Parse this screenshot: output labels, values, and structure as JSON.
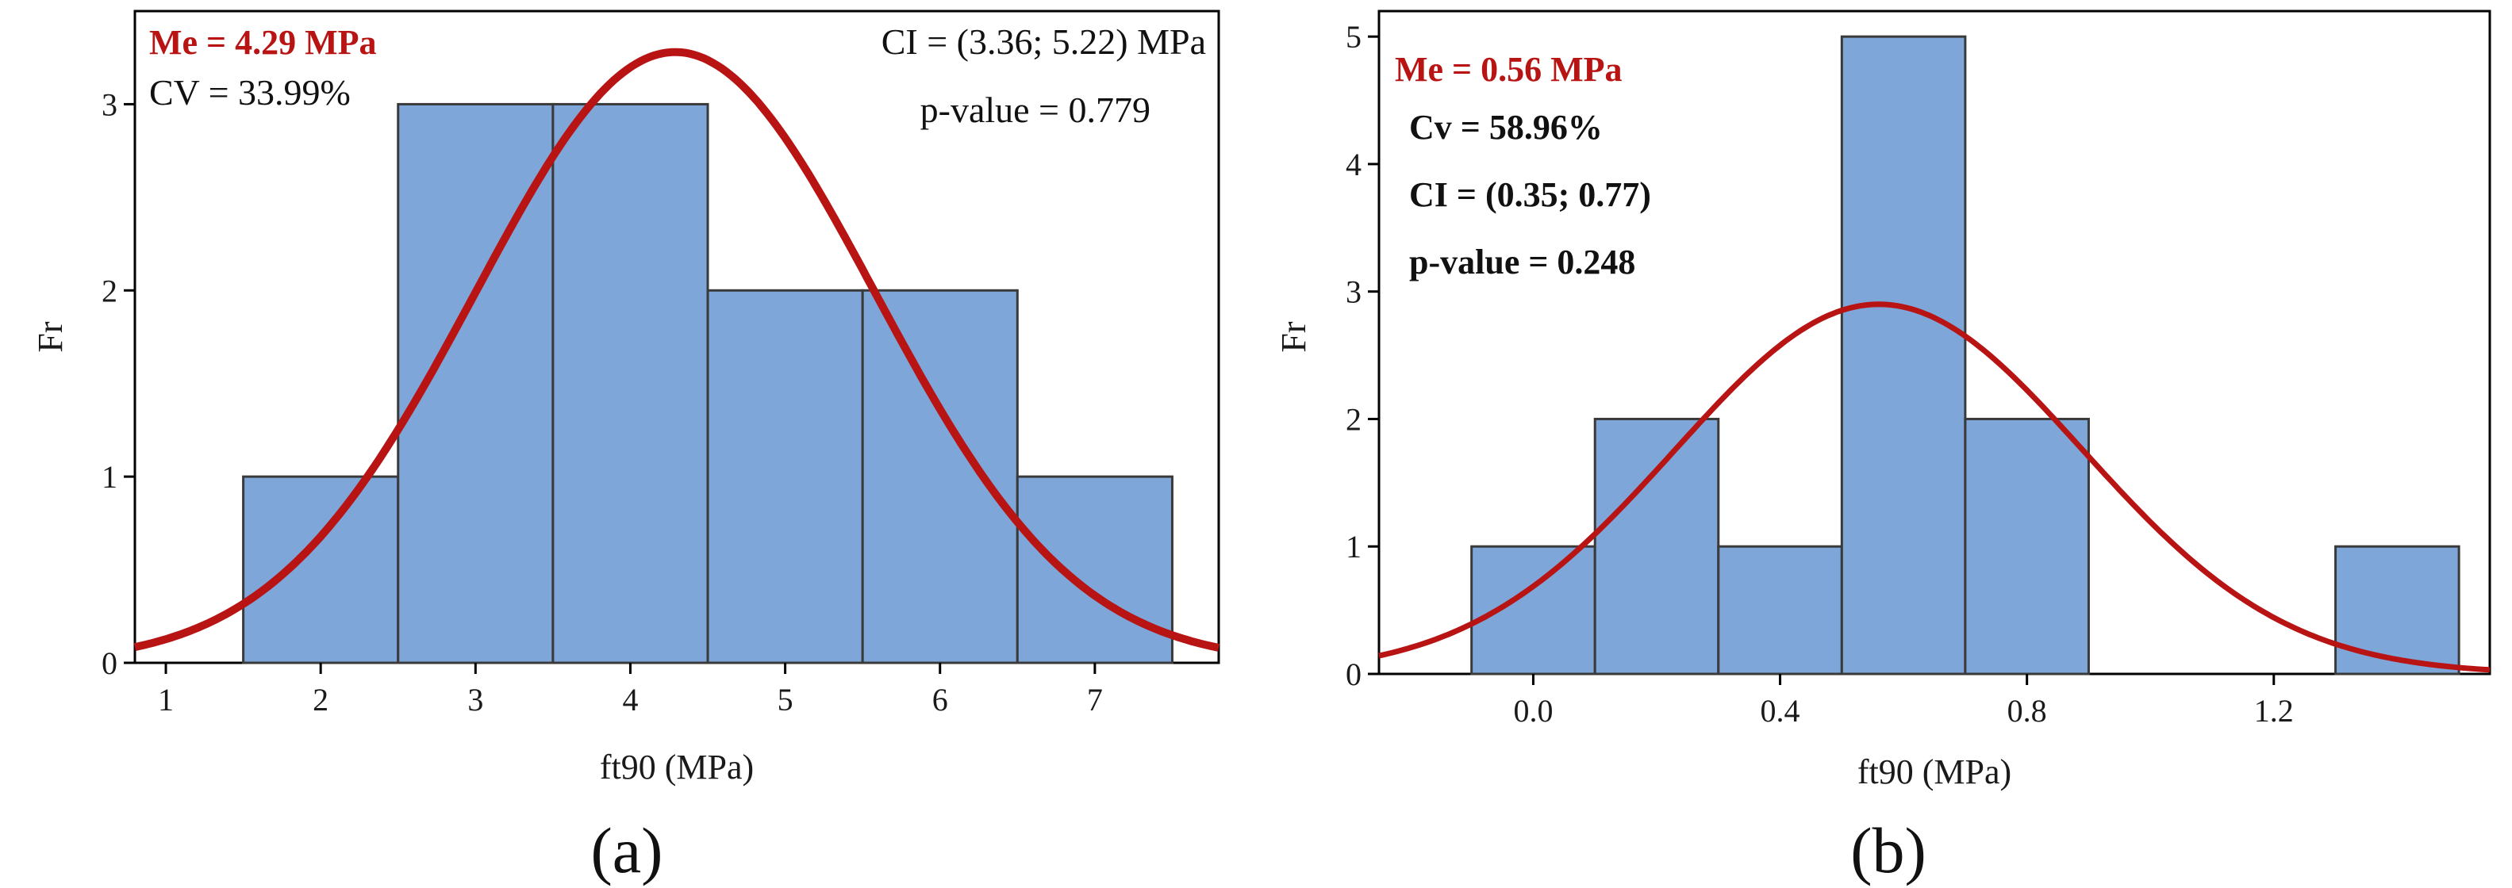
{
  "chart_data": [
    {
      "type": "bar",
      "panel_label": "(a)",
      "xlabel": "ft90 (MPa)",
      "ylabel": "Fr",
      "xlim": [
        0.8,
        7.8
      ],
      "ylim": [
        0,
        3.5
      ],
      "xticks": [
        1,
        2,
        3,
        4,
        5,
        6,
        7
      ],
      "yticks": [
        0,
        1,
        2,
        3
      ],
      "bins": [
        {
          "start": 1.5,
          "end": 2.5,
          "value": 1
        },
        {
          "start": 2.5,
          "end": 3.5,
          "value": 3
        },
        {
          "start": 3.5,
          "end": 4.5,
          "value": 3
        },
        {
          "start": 4.5,
          "end": 5.5,
          "value": 2
        },
        {
          "start": 5.5,
          "end": 6.5,
          "value": 2
        },
        {
          "start": 6.5,
          "end": 7.5,
          "value": 1
        }
      ],
      "fit_curve": {
        "type": "normal",
        "mean": 4.29,
        "peak": 3.28,
        "sigma": 1.29
      },
      "annotations": {
        "mean": "Me = 4.29 MPa",
        "cv": "CV = 33.99%",
        "ci": "CI = (3.36; 5.22) MPa",
        "p": "p-value = 0.779"
      },
      "grid": false,
      "colors": {
        "bar": "#7ea6d8",
        "bar_edge": "#3a3a3a",
        "curve": "#b81414",
        "mean_text": "#b81414"
      }
    },
    {
      "type": "bar",
      "panel_label": "(b)",
      "xlabel": "ft90 (MPa)",
      "ylabel": "Fr",
      "xlim": [
        -0.25,
        1.55
      ],
      "ylim": [
        0,
        5.2
      ],
      "xticks": [
        0.0,
        0.4,
        0.8,
        1.2
      ],
      "xtick_labels": [
        "0.0",
        "0.4",
        "0.8",
        "1.2"
      ],
      "yticks": [
        0,
        1,
        2,
        3,
        4,
        5
      ],
      "bins": [
        {
          "start": -0.1,
          "end": 0.1,
          "value": 1
        },
        {
          "start": 0.1,
          "end": 0.3,
          "value": 2
        },
        {
          "start": 0.3,
          "end": 0.5,
          "value": 1
        },
        {
          "start": 0.5,
          "end": 0.7,
          "value": 5
        },
        {
          "start": 0.7,
          "end": 0.9,
          "value": 2
        },
        {
          "start": 1.3,
          "end": 1.5,
          "value": 1
        }
      ],
      "fit_curve": {
        "type": "normal",
        "mean": 0.56,
        "peak": 2.9,
        "sigma": 0.33
      },
      "annotations": {
        "mean": "Me = 0.56 MPa",
        "cv": "Cv = 58.96%",
        "ci": "CI = (0.35; 0.77)",
        "p": "p-value = 0.248"
      },
      "grid": false,
      "colors": {
        "bar": "#7ea6d8",
        "bar_edge": "#3a3a3a",
        "curve": "#b81414",
        "mean_text": "#b81414"
      }
    }
  ]
}
